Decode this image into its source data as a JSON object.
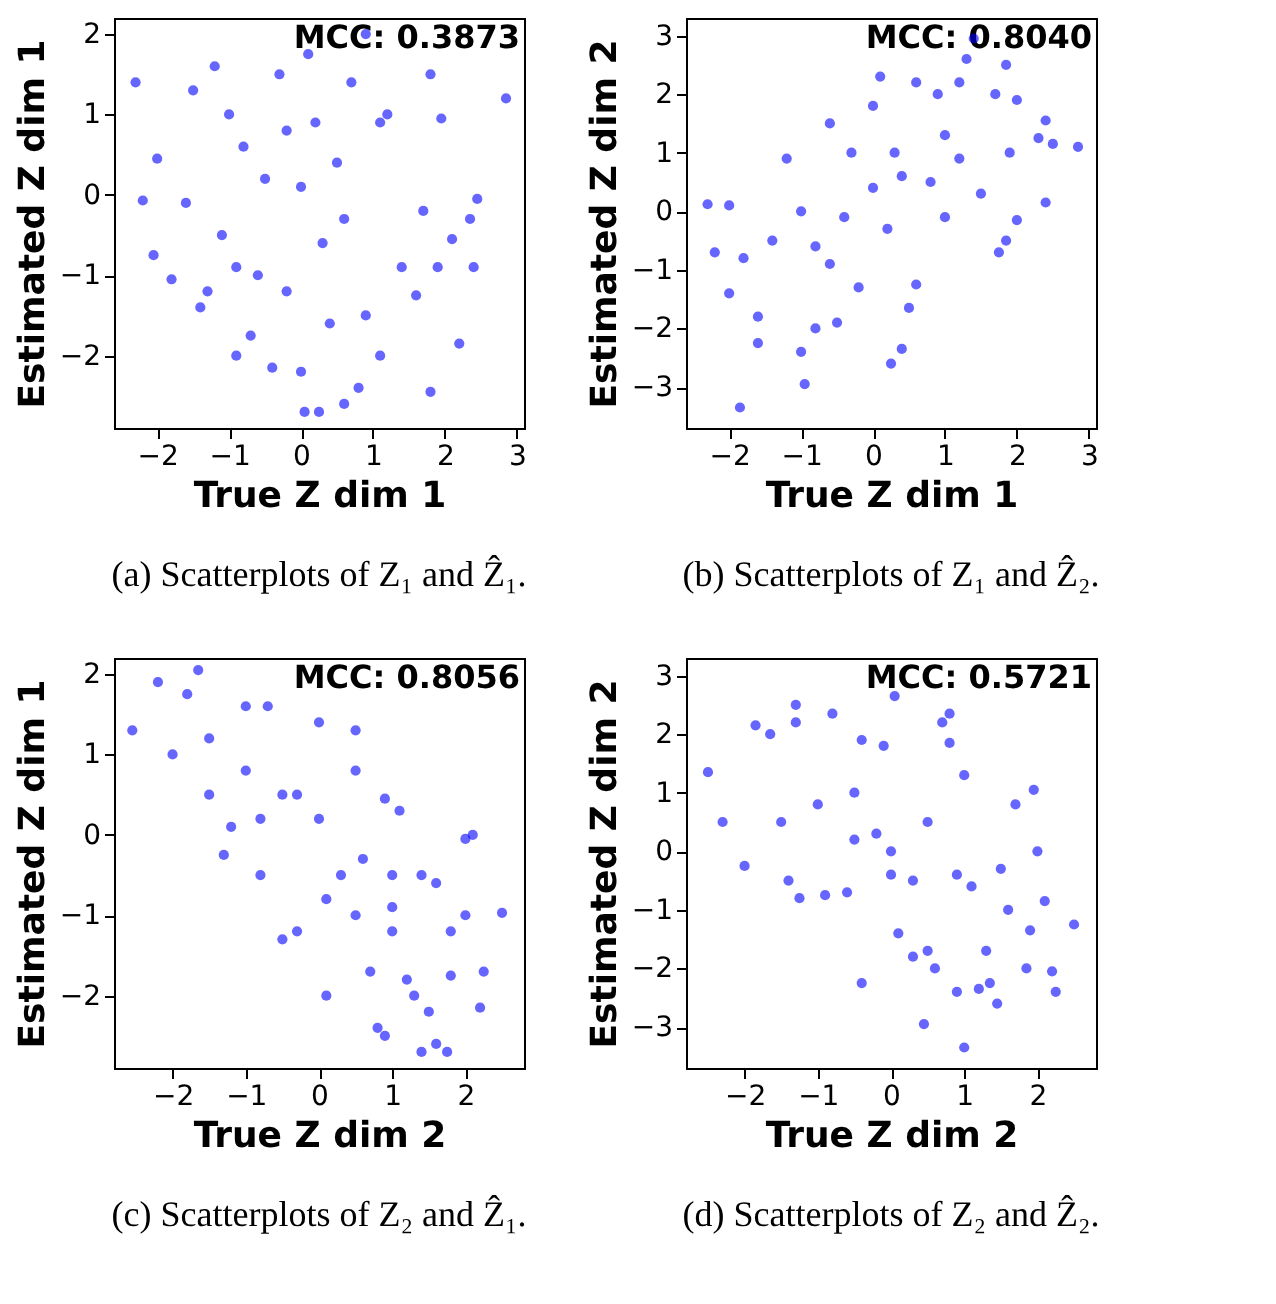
{
  "chart_data": [
    {
      "type": "scatter",
      "xlabel": "True Z dim 1",
      "ylabel": "Estimated Z dim 1",
      "annotations": [
        "MCC: 0.3873",
        "(a) Scatterplots of Z₁ and Ẑ₁."
      ],
      "xlim": [
        -2.6,
        3.1
      ],
      "ylim": [
        -2.9,
        2.2
      ],
      "xticks": [
        -2,
        -1,
        0,
        1,
        2,
        3
      ],
      "yticks": [
        -2,
        -1,
        0,
        1,
        2
      ],
      "marker": "circle",
      "grid": false,
      "series": [
        {
          "color": "#0000ff",
          "x": [
            -2.3,
            2.85,
            -2.2,
            -2.0,
            -2.05,
            -1.8,
            -1.5,
            -1.2,
            -1.0,
            -1.1,
            -1.3,
            -0.9,
            -0.6,
            -0.7,
            -0.4,
            -0.5,
            -0.3,
            -0.2,
            0.0,
            0.05,
            0.25,
            0.2,
            0.1,
            0.3,
            0.4,
            0.6,
            0.8,
            0.5,
            0.7,
            1.1,
            1.1,
            1.2,
            1.4,
            1.6,
            1.8,
            1.9,
            1.95,
            2.1,
            2.2,
            2.35,
            2.4,
            2.45,
            1.8,
            1.7,
            0.9,
            -0.8,
            -1.6,
            -0.2,
            0.9,
            -1.4,
            0.0,
            -0.9,
            0.6
          ],
          "values": [
            1.4,
            1.2,
            -0.07,
            0.45,
            -0.75,
            -1.05,
            1.3,
            1.6,
            1.0,
            -0.5,
            -1.2,
            -2.0,
            -1.0,
            -1.75,
            -2.15,
            0.2,
            1.5,
            0.8,
            -2.2,
            -2.7,
            -2.7,
            0.9,
            1.75,
            -0.6,
            -1.6,
            -2.6,
            -2.4,
            0.4,
            1.4,
            -2.0,
            0.9,
            1.0,
            -0.9,
            -1.25,
            -2.45,
            -0.9,
            0.95,
            -0.55,
            -1.85,
            -0.3,
            -0.9,
            -0.05,
            1.5,
            -0.2,
            2.0,
            0.6,
            -0.1,
            -1.2,
            -1.5,
            -1.4,
            0.1,
            -0.9,
            -0.3
          ]
        }
      ]
    },
    {
      "type": "scatter",
      "xlabel": "True Z dim 1",
      "ylabel": "Estimated Z dim 2",
      "annotations": [
        "MCC: 0.8040",
        "(b) Scatterplots of Z₁ and Ẑ₂."
      ],
      "xlim": [
        -2.6,
        3.1
      ],
      "ylim": [
        -3.7,
        3.3
      ],
      "xticks": [
        -2,
        -1,
        0,
        1,
        2,
        3
      ],
      "yticks": [
        -3,
        -2,
        -1,
        0,
        1,
        2,
        3
      ],
      "marker": "circle",
      "grid": false,
      "series": [
        {
          "color": "#0000ff",
          "x": [
            -2.3,
            -2.0,
            -2.2,
            -1.85,
            -2.0,
            -1.6,
            -1.6,
            -1.8,
            -1.2,
            -1.0,
            -0.95,
            -0.8,
            -0.5,
            -0.8,
            -0.4,
            -0.6,
            -0.3,
            0.0,
            0.0,
            0.1,
            0.2,
            0.25,
            0.4,
            0.5,
            0.6,
            0.8,
            0.9,
            0.3,
            1.0,
            1.2,
            1.2,
            1.3,
            1.4,
            1.5,
            1.7,
            1.75,
            1.85,
            1.85,
            1.9,
            2.0,
            2.0,
            2.3,
            2.4,
            2.4,
            2.5,
            2.85,
            -1.4,
            -1.0,
            -0.2,
            0.6,
            0.4,
            1.0,
            -0.6
          ],
          "values": [
            0.12,
            0.1,
            -0.7,
            -3.35,
            -1.4,
            -1.8,
            -2.25,
            -0.8,
            0.9,
            -2.4,
            -2.95,
            -2.0,
            -1.9,
            -0.6,
            -0.1,
            1.5,
            1.0,
            0.4,
            1.8,
            2.3,
            -0.3,
            -2.6,
            -2.35,
            -1.65,
            2.2,
            0.5,
            2.0,
            1.0,
            -0.1,
            2.2,
            0.9,
            2.6,
            2.95,
            0.3,
            2.0,
            -0.7,
            -0.5,
            2.5,
            1.0,
            -0.15,
            1.9,
            1.25,
            1.55,
            0.15,
            1.15,
            1.1,
            -0.5,
            0.0,
            -1.3,
            -1.25,
            0.6,
            1.3,
            -0.9
          ]
        }
      ]
    },
    {
      "type": "scatter",
      "xlabel": "True Z dim 2",
      "ylabel": "Estimated Z dim 1",
      "annotations": [
        "MCC: 0.8056",
        "(c) Scatterplots of Z₂ and Ẑ₁."
      ],
      "xlim": [
        -2.8,
        2.8
      ],
      "ylim": [
        -2.9,
        2.2
      ],
      "xticks": [
        -2,
        -1,
        0,
        1,
        2
      ],
      "yticks": [
        -2,
        -1,
        0,
        1,
        2
      ],
      "marker": "circle",
      "grid": false,
      "series": [
        {
          "color": "#0000ff",
          "x": [
            -2.55,
            -2.2,
            -1.65,
            -2.0,
            -1.8,
            -1.5,
            -1.3,
            -1.2,
            -1.0,
            -0.8,
            -0.7,
            -0.5,
            -0.3,
            -0.3,
            0.0,
            0.0,
            0.1,
            0.1,
            0.5,
            0.5,
            0.6,
            0.7,
            0.8,
            0.9,
            0.9,
            1.1,
            1.0,
            1.0,
            1.2,
            1.3,
            1.4,
            1.6,
            1.75,
            1.6,
            1.4,
            1.8,
            1.8,
            2.0,
            2.1,
            2.0,
            2.2,
            2.25,
            2.5,
            1.5,
            -1.0,
            -0.5,
            0.3,
            0.5,
            -1.5,
            -0.8,
            1.0
          ],
          "values": [
            1.3,
            1.9,
            2.05,
            1.0,
            1.75,
            1.2,
            -0.25,
            0.1,
            1.6,
            -0.5,
            1.6,
            -1.3,
            -1.2,
            0.5,
            1.4,
            0.2,
            -0.8,
            -2.0,
            1.3,
            0.8,
            -0.3,
            -1.7,
            -2.4,
            -2.5,
            0.45,
            0.3,
            -0.5,
            -1.2,
            -1.8,
            -2.0,
            -2.7,
            -2.6,
            -2.7,
            -0.6,
            -0.5,
            -1.2,
            -1.75,
            -0.05,
            0.0,
            -1.0,
            -2.15,
            -1.7,
            -0.97,
            -2.2,
            0.8,
            0.5,
            -0.5,
            -1.0,
            0.5,
            0.2,
            -0.9
          ]
        }
      ]
    },
    {
      "type": "scatter",
      "xlabel": "True Z dim 2",
      "ylabel": "Estimated Z dim 2",
      "annotations": [
        "MCC: 0.5721",
        "(d) Scatterplots of Z₂ and Ẑ₂."
      ],
      "xlim": [
        -2.8,
        2.8
      ],
      "ylim": [
        -3.7,
        3.3
      ],
      "xticks": [
        -2,
        -1,
        0,
        1,
        2
      ],
      "yticks": [
        -3,
        -2,
        -1,
        0,
        1,
        2,
        3
      ],
      "marker": "circle",
      "grid": false,
      "series": [
        {
          "color": "#0000ff",
          "x": [
            -2.5,
            -2.3,
            -2.0,
            -1.85,
            -1.65,
            -1.4,
            -1.3,
            -1.25,
            -1.3,
            -0.9,
            -0.8,
            -0.6,
            -0.5,
            -0.4,
            -0.4,
            -0.2,
            -0.1,
            0.0,
            0.05,
            0.1,
            0.3,
            0.45,
            0.5,
            0.6,
            0.7,
            0.8,
            0.8,
            0.9,
            1.0,
            1.0,
            0.9,
            1.2,
            1.3,
            1.35,
            1.45,
            1.5,
            1.6,
            1.7,
            1.85,
            1.9,
            1.95,
            2.0,
            2.1,
            2.2,
            2.25,
            2.5,
            -1.0,
            -0.5,
            0.3,
            0.5,
            1.1,
            -1.5,
            0.0
          ],
          "values": [
            1.35,
            0.5,
            -0.25,
            2.15,
            2.0,
            -0.5,
            2.5,
            -0.8,
            2.2,
            -0.75,
            2.35,
            -0.7,
            1.0,
            -2.25,
            1.9,
            0.3,
            1.8,
            -0.4,
            2.65,
            -1.4,
            -1.8,
            -2.95,
            -1.7,
            -2.0,
            2.2,
            2.35,
            1.85,
            -0.4,
            -3.35,
            1.3,
            -2.4,
            -2.35,
            -1.7,
            -2.25,
            -2.6,
            -0.3,
            -1.0,
            0.8,
            -2.0,
            -1.35,
            1.05,
            0.0,
            -0.85,
            -2.05,
            -2.4,
            -1.25,
            0.8,
            0.2,
            -0.5,
            0.5,
            -0.6,
            0.5,
            0.0
          ]
        }
      ]
    }
  ]
}
